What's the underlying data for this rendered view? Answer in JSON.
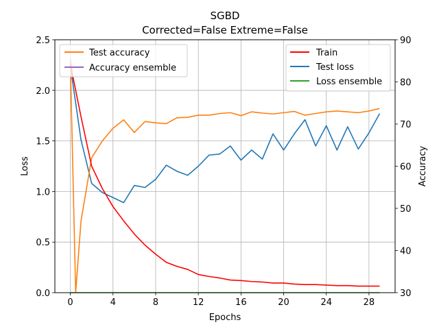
{
  "chart_data": {
    "type": "line",
    "title": "SGBD",
    "subtitle": "Corrected=False Extreme=False",
    "xlabel": "Epochs",
    "ylabel_left": "Loss",
    "ylabel_right": "Accuracy",
    "xlim": [
      -1.45,
      30.45
    ],
    "ylim_left": [
      0,
      2.5
    ],
    "ylim_right": [
      30,
      90
    ],
    "x_ticks": [
      0,
      4,
      8,
      12,
      16,
      20,
      24,
      28
    ],
    "y_ticks_left": [
      0.0,
      0.5,
      1.0,
      1.5,
      2.0,
      2.5
    ],
    "y_tick_labels_left": [
      "0.0",
      "0.5",
      "1.0",
      "1.5",
      "2.0",
      "2.5"
    ],
    "y_ticks_right": [
      30,
      40,
      50,
      60,
      70,
      80,
      90
    ],
    "grid": true,
    "legends": {
      "upper_left": [
        "Test accuracy",
        "Accuracy ensemble"
      ],
      "upper_right": [
        "Train",
        "Test loss",
        "Loss ensemble"
      ]
    },
    "series": [
      {
        "name": "Train",
        "axis": "left",
        "color": "#ff0000",
        "x": [
          0,
          1,
          2,
          3,
          4,
          5,
          6,
          7,
          8,
          9,
          10,
          11,
          12,
          13,
          14,
          15,
          16,
          17,
          18,
          19,
          20,
          21,
          22,
          23,
          24,
          25,
          26,
          27,
          28,
          29
        ],
        "values": [
          2.26,
          1.74,
          1.25,
          1.03,
          0.85,
          0.71,
          0.58,
          0.47,
          0.38,
          0.3,
          0.26,
          0.23,
          0.18,
          0.16,
          0.145,
          0.125,
          0.12,
          0.11,
          0.105,
          0.095,
          0.095,
          0.085,
          0.08,
          0.08,
          0.075,
          0.07,
          0.07,
          0.065,
          0.065,
          0.065
        ]
      },
      {
        "name": "Test loss",
        "axis": "left",
        "color": "#1f77b4",
        "x": [
          0,
          1,
          2,
          3,
          4,
          5,
          6,
          7,
          8,
          9,
          10,
          11,
          12,
          13,
          14,
          15,
          16,
          17,
          18,
          19,
          20,
          21,
          22,
          23,
          24,
          25,
          26,
          27,
          28,
          29
        ],
        "values": [
          2.24,
          1.51,
          1.08,
          0.99,
          0.94,
          0.89,
          1.06,
          1.04,
          1.12,
          1.26,
          1.2,
          1.16,
          1.25,
          1.36,
          1.37,
          1.45,
          1.31,
          1.41,
          1.32,
          1.57,
          1.41,
          1.57,
          1.71,
          1.45,
          1.65,
          1.41,
          1.64,
          1.42,
          1.58,
          1.77
        ]
      },
      {
        "name": "Loss ensemble",
        "axis": "left",
        "color": "#2ca02c",
        "x": [
          0,
          1,
          2,
          3,
          4,
          5,
          6,
          7,
          8,
          9,
          10,
          11,
          12,
          13,
          14,
          15,
          16,
          17,
          18,
          19,
          20,
          21,
          22,
          23,
          24,
          25,
          26,
          27,
          28,
          29
        ],
        "values": [
          0,
          0,
          0,
          0,
          0,
          0,
          0,
          0,
          0,
          0,
          0,
          0,
          0,
          0,
          0,
          0,
          0,
          0,
          0,
          0,
          0,
          0,
          0,
          0,
          0,
          0,
          0,
          0,
          0,
          0
        ]
      },
      {
        "name": "Test accuracy",
        "axis": "right",
        "color": "#ff7f0e",
        "x": [
          0,
          0.5,
          1,
          2,
          3,
          4,
          5,
          6,
          7,
          8,
          9,
          10,
          11,
          12,
          13,
          14,
          15,
          16,
          17,
          18,
          19,
          20,
          21,
          22,
          23,
          24,
          25,
          26,
          27,
          28,
          29
        ],
        "values": [
          85,
          30,
          47,
          62,
          66,
          69,
          71,
          68,
          70.6,
          70.3,
          70.1,
          71.5,
          71.6,
          72.1,
          72.1,
          72.5,
          72.7,
          72,
          72.9,
          72.6,
          72.4,
          72.7,
          73,
          72.1,
          72.5,
          72.9,
          73.1,
          72.9,
          72.7,
          73.1,
          73.7
        ]
      },
      {
        "name": "Accuracy ensemble",
        "axis": "right",
        "color": "#9467bd",
        "x": [
          0,
          0.3
        ],
        "values": [
          85.5,
          80
        ]
      }
    ]
  }
}
